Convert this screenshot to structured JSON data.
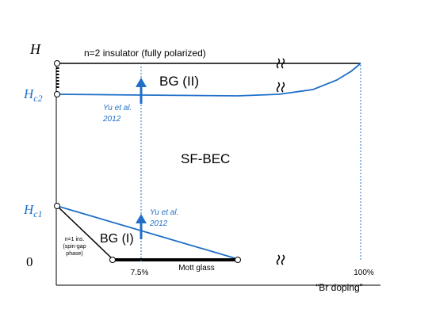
{
  "axes": {
    "y_axis_label": "H",
    "y_tick_hc2": "H",
    "y_tick_hc2_sub": "c2",
    "y_tick_hc1": "H",
    "y_tick_hc1_sub": "c1",
    "y_tick_zero": "0",
    "x_tick_7_5": "7.5%",
    "x_tick_100": "100%",
    "x_axis_label": "“Br doping”"
  },
  "regions": {
    "top_label": "n=2 insulator (fully polarized)",
    "bg2": "BG (II)",
    "sfbec": "SF-BEC",
    "bg1": "BG (I)",
    "n1_line1": "n=1 ins.",
    "n1_line2": "(spin-gap",
    "n1_line3": "phase)",
    "mott_glass": "Mott glass"
  },
  "annotations": {
    "yu_upper_line1": "Yu et al.",
    "yu_upper_line2": "2012",
    "yu_lower_line1": "Yu et al.",
    "yu_lower_line2": "2012"
  },
  "colors": {
    "blue": "#1f6fc9",
    "black": "#000000"
  }
}
